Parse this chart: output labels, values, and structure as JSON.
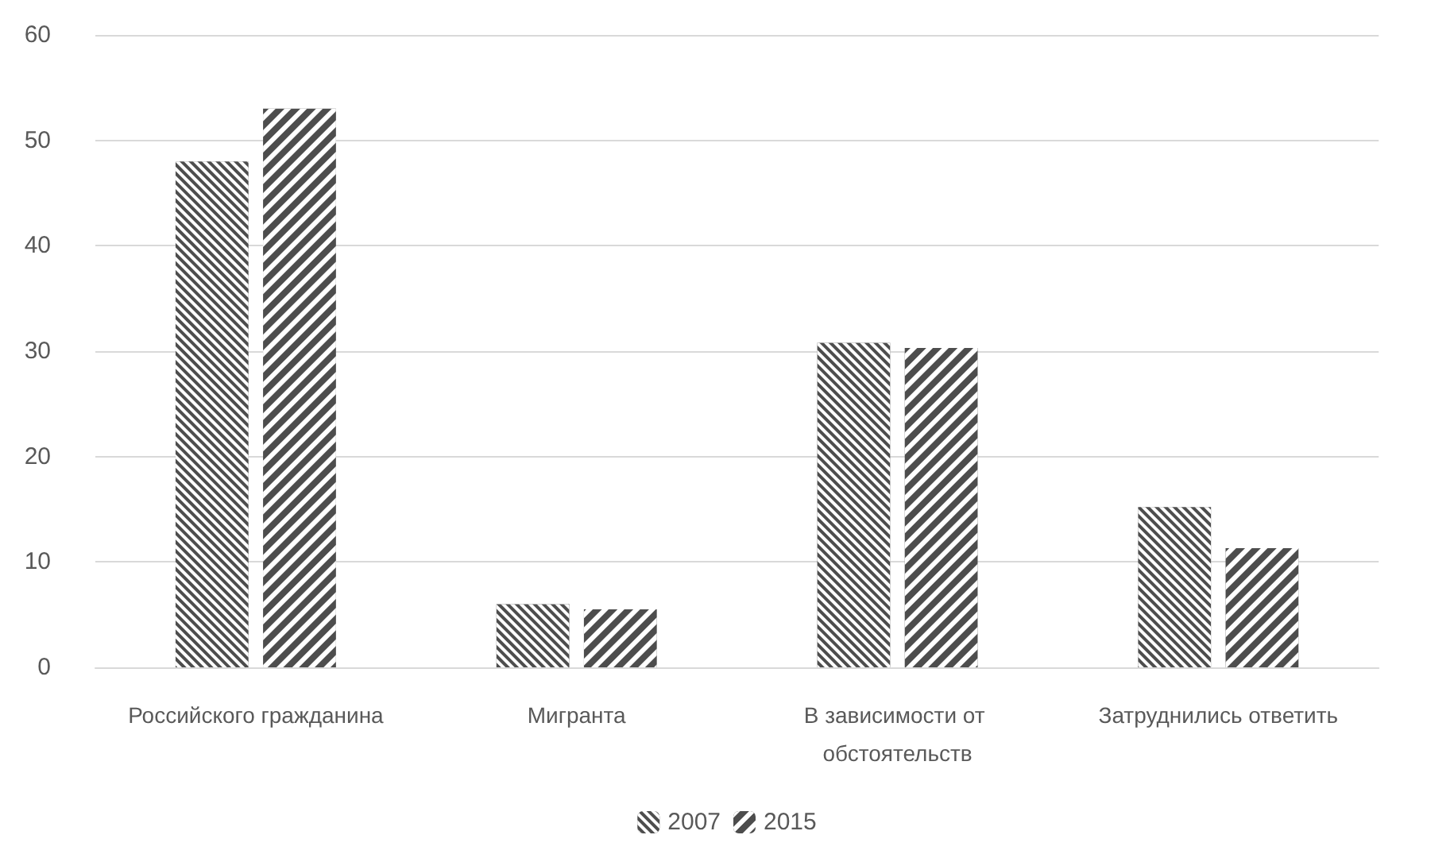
{
  "chart_data": {
    "type": "bar",
    "categories": [
      "Российского гражданина",
      "Мигранта",
      "В зависимости от обстоятельств",
      "Затруднились ответить"
    ],
    "series": [
      {
        "name": "2007",
        "color": "#4d4d4d",
        "values": [
          48,
          6,
          30.8,
          15.2
        ]
      },
      {
        "name": "2015",
        "color": "#4d4d4d",
        "values": [
          53,
          5.5,
          30.3,
          11.3
        ]
      }
    ],
    "ylim": [
      0,
      60
    ],
    "yticks": [
      0,
      10,
      20,
      30,
      40,
      50,
      60
    ],
    "grid": "y",
    "legend": "bottom"
  }
}
